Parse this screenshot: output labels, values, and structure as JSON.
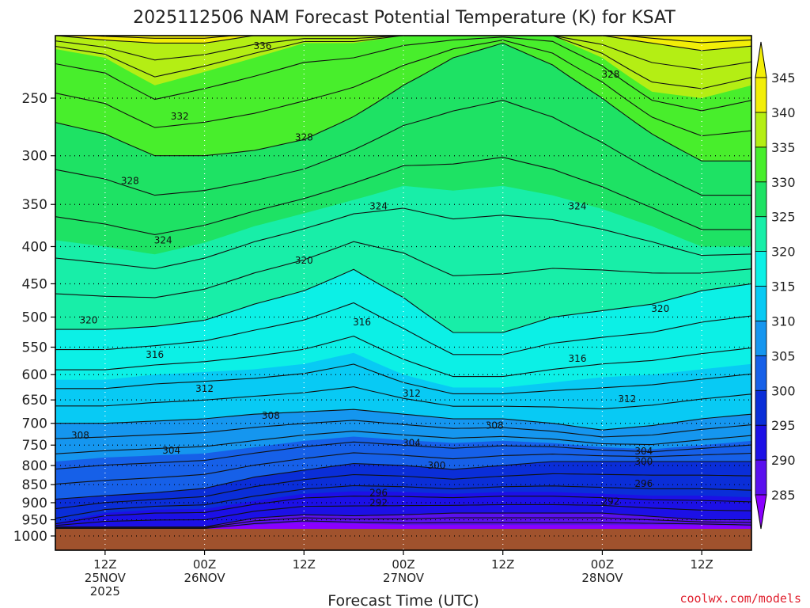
{
  "chart_data": {
    "type": "heatmap",
    "title": "2025112506 NAM Forecast Potential Temperature (K) for KSAT",
    "xlabel": "Forecast Time (UTC)",
    "ylabel": "",
    "y_scale": "pressure (log, hPa, inverted)",
    "ylim": [
      1000,
      200
    ],
    "y_ticks": [
      250,
      300,
      350,
      400,
      450,
      500,
      550,
      600,
      650,
      700,
      750,
      800,
      850,
      900,
      950,
      1000
    ],
    "x_ticks": [
      {
        "hour": 6,
        "lines": [
          "12Z",
          "25NOV",
          "2025"
        ]
      },
      {
        "hour": 18,
        "lines": [
          "00Z",
          "26NOV"
        ]
      },
      {
        "hour": 30,
        "lines": [
          "12Z"
        ]
      },
      {
        "hour": 42,
        "lines": [
          "00Z",
          "27NOV"
        ]
      },
      {
        "hour": 54,
        "lines": [
          "12Z"
        ]
      },
      {
        "hour": 66,
        "lines": [
          "00Z",
          "28NOV"
        ]
      },
      {
        "hour": 78,
        "lines": [
          "12Z"
        ]
      }
    ],
    "xlim": [
      0,
      84
    ],
    "grid": true,
    "colorbar": {
      "levels": [
        285,
        290,
        295,
        300,
        305,
        310,
        315,
        320,
        325,
        330,
        335,
        340,
        345
      ],
      "colors": [
        "#8a00ff",
        "#5a10ee",
        "#1c10e6",
        "#0a2ed8",
        "#1660e8",
        "#1596ef",
        "#08caf4",
        "#0cf0e6",
        "#18eea8",
        "#1ee264",
        "#48ee2c",
        "#b4ee14",
        "#f2ee08"
      ]
    },
    "ground_color": "#a0522d",
    "contour_labels": [
      {
        "value": "336",
        "hour": 25,
        "p": 212
      },
      {
        "value": "332",
        "hour": 15,
        "p": 265
      },
      {
        "value": "328",
        "hour": 9,
        "p": 325
      },
      {
        "value": "328",
        "hour": 30,
        "p": 283
      },
      {
        "value": "328",
        "hour": 67,
        "p": 232
      },
      {
        "value": "324",
        "hour": 13,
        "p": 392
      },
      {
        "value": "324",
        "hour": 39,
        "p": 352
      },
      {
        "value": "324",
        "hour": 63,
        "p": 352
      },
      {
        "value": "320",
        "hour": 4,
        "p": 505
      },
      {
        "value": "320",
        "hour": 30,
        "p": 418
      },
      {
        "value": "320",
        "hour": 73,
        "p": 487
      },
      {
        "value": "316",
        "hour": 12,
        "p": 563
      },
      {
        "value": "316",
        "hour": 37,
        "p": 508
      },
      {
        "value": "316",
        "hour": 63,
        "p": 570
      },
      {
        "value": "312",
        "hour": 18,
        "p": 627
      },
      {
        "value": "312",
        "hour": 43,
        "p": 637
      },
      {
        "value": "312",
        "hour": 69,
        "p": 648
      },
      {
        "value": "308",
        "hour": 3,
        "p": 727
      },
      {
        "value": "308",
        "hour": 26,
        "p": 683
      },
      {
        "value": "308",
        "hour": 53,
        "p": 705
      },
      {
        "value": "304",
        "hour": 14,
        "p": 763
      },
      {
        "value": "304",
        "hour": 43,
        "p": 745
      },
      {
        "value": "304",
        "hour": 71,
        "p": 765
      },
      {
        "value": "300",
        "hour": 46,
        "p": 800
      },
      {
        "value": "300",
        "hour": 71,
        "p": 790
      },
      {
        "value": "296",
        "hour": 39,
        "p": 872
      },
      {
        "value": "296",
        "hour": 71,
        "p": 847
      },
      {
        "value": "292",
        "hour": 39,
        "p": 900
      },
      {
        "value": "292",
        "hour": 67,
        "p": 897
      }
    ]
  },
  "credit": "coolwx.com/models"
}
